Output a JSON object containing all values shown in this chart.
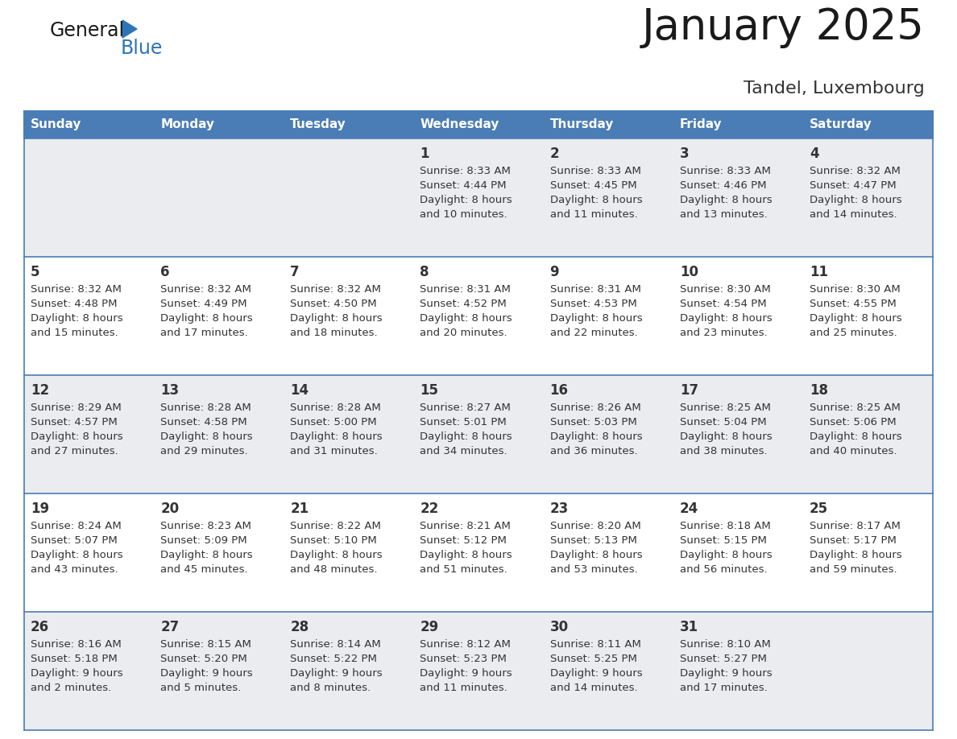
{
  "title": "January 2025",
  "subtitle": "Tandel, Luxembourg",
  "days_of_week": [
    "Sunday",
    "Monday",
    "Tuesday",
    "Wednesday",
    "Thursday",
    "Friday",
    "Saturday"
  ],
  "header_bg": "#4A7DB5",
  "header_text_color": "#FFFFFF",
  "cell_bg_even": "#EAECF0",
  "cell_bg_odd": "#FFFFFF",
  "text_color": "#333333",
  "grid_color": "#4A7DB5",
  "title_color": "#1a1a1a",
  "subtitle_color": "#333333",
  "logo_general_color": "#1a1a1a",
  "logo_blue_color": "#2E75B6",
  "calendar_data": [
    [
      {
        "day": "",
        "sunrise": "",
        "sunset": "",
        "daylight": ""
      },
      {
        "day": "",
        "sunrise": "",
        "sunset": "",
        "daylight": ""
      },
      {
        "day": "",
        "sunrise": "",
        "sunset": "",
        "daylight": ""
      },
      {
        "day": "1",
        "sunrise": "8:33 AM",
        "sunset": "4:44 PM",
        "daylight": "8 hours\nand 10 minutes."
      },
      {
        "day": "2",
        "sunrise": "8:33 AM",
        "sunset": "4:45 PM",
        "daylight": "8 hours\nand 11 minutes."
      },
      {
        "day": "3",
        "sunrise": "8:33 AM",
        "sunset": "4:46 PM",
        "daylight": "8 hours\nand 13 minutes."
      },
      {
        "day": "4",
        "sunrise": "8:32 AM",
        "sunset": "4:47 PM",
        "daylight": "8 hours\nand 14 minutes."
      }
    ],
    [
      {
        "day": "5",
        "sunrise": "8:32 AM",
        "sunset": "4:48 PM",
        "daylight": "8 hours\nand 15 minutes."
      },
      {
        "day": "6",
        "sunrise": "8:32 AM",
        "sunset": "4:49 PM",
        "daylight": "8 hours\nand 17 minutes."
      },
      {
        "day": "7",
        "sunrise": "8:32 AM",
        "sunset": "4:50 PM",
        "daylight": "8 hours\nand 18 minutes."
      },
      {
        "day": "8",
        "sunrise": "8:31 AM",
        "sunset": "4:52 PM",
        "daylight": "8 hours\nand 20 minutes."
      },
      {
        "day": "9",
        "sunrise": "8:31 AM",
        "sunset": "4:53 PM",
        "daylight": "8 hours\nand 22 minutes."
      },
      {
        "day": "10",
        "sunrise": "8:30 AM",
        "sunset": "4:54 PM",
        "daylight": "8 hours\nand 23 minutes."
      },
      {
        "day": "11",
        "sunrise": "8:30 AM",
        "sunset": "4:55 PM",
        "daylight": "8 hours\nand 25 minutes."
      }
    ],
    [
      {
        "day": "12",
        "sunrise": "8:29 AM",
        "sunset": "4:57 PM",
        "daylight": "8 hours\nand 27 minutes."
      },
      {
        "day": "13",
        "sunrise": "8:28 AM",
        "sunset": "4:58 PM",
        "daylight": "8 hours\nand 29 minutes."
      },
      {
        "day": "14",
        "sunrise": "8:28 AM",
        "sunset": "5:00 PM",
        "daylight": "8 hours\nand 31 minutes."
      },
      {
        "day": "15",
        "sunrise": "8:27 AM",
        "sunset": "5:01 PM",
        "daylight": "8 hours\nand 34 minutes."
      },
      {
        "day": "16",
        "sunrise": "8:26 AM",
        "sunset": "5:03 PM",
        "daylight": "8 hours\nand 36 minutes."
      },
      {
        "day": "17",
        "sunrise": "8:25 AM",
        "sunset": "5:04 PM",
        "daylight": "8 hours\nand 38 minutes."
      },
      {
        "day": "18",
        "sunrise": "8:25 AM",
        "sunset": "5:06 PM",
        "daylight": "8 hours\nand 40 minutes."
      }
    ],
    [
      {
        "day": "19",
        "sunrise": "8:24 AM",
        "sunset": "5:07 PM",
        "daylight": "8 hours\nand 43 minutes."
      },
      {
        "day": "20",
        "sunrise": "8:23 AM",
        "sunset": "5:09 PM",
        "daylight": "8 hours\nand 45 minutes."
      },
      {
        "day": "21",
        "sunrise": "8:22 AM",
        "sunset": "5:10 PM",
        "daylight": "8 hours\nand 48 minutes."
      },
      {
        "day": "22",
        "sunrise": "8:21 AM",
        "sunset": "5:12 PM",
        "daylight": "8 hours\nand 51 minutes."
      },
      {
        "day": "23",
        "sunrise": "8:20 AM",
        "sunset": "5:13 PM",
        "daylight": "8 hours\nand 53 minutes."
      },
      {
        "day": "24",
        "sunrise": "8:18 AM",
        "sunset": "5:15 PM",
        "daylight": "8 hours\nand 56 minutes."
      },
      {
        "day": "25",
        "sunrise": "8:17 AM",
        "sunset": "5:17 PM",
        "daylight": "8 hours\nand 59 minutes."
      }
    ],
    [
      {
        "day": "26",
        "sunrise": "8:16 AM",
        "sunset": "5:18 PM",
        "daylight": "9 hours\nand 2 minutes."
      },
      {
        "day": "27",
        "sunrise": "8:15 AM",
        "sunset": "5:20 PM",
        "daylight": "9 hours\nand 5 minutes."
      },
      {
        "day": "28",
        "sunrise": "8:14 AM",
        "sunset": "5:22 PM",
        "daylight": "9 hours\nand 8 minutes."
      },
      {
        "day": "29",
        "sunrise": "8:12 AM",
        "sunset": "5:23 PM",
        "daylight": "9 hours\nand 11 minutes."
      },
      {
        "day": "30",
        "sunrise": "8:11 AM",
        "sunset": "5:25 PM",
        "daylight": "9 hours\nand 14 minutes."
      },
      {
        "day": "31",
        "sunrise": "8:10 AM",
        "sunset": "5:27 PM",
        "daylight": "9 hours\nand 17 minutes."
      },
      {
        "day": "",
        "sunrise": "",
        "sunset": "",
        "daylight": ""
      }
    ]
  ]
}
